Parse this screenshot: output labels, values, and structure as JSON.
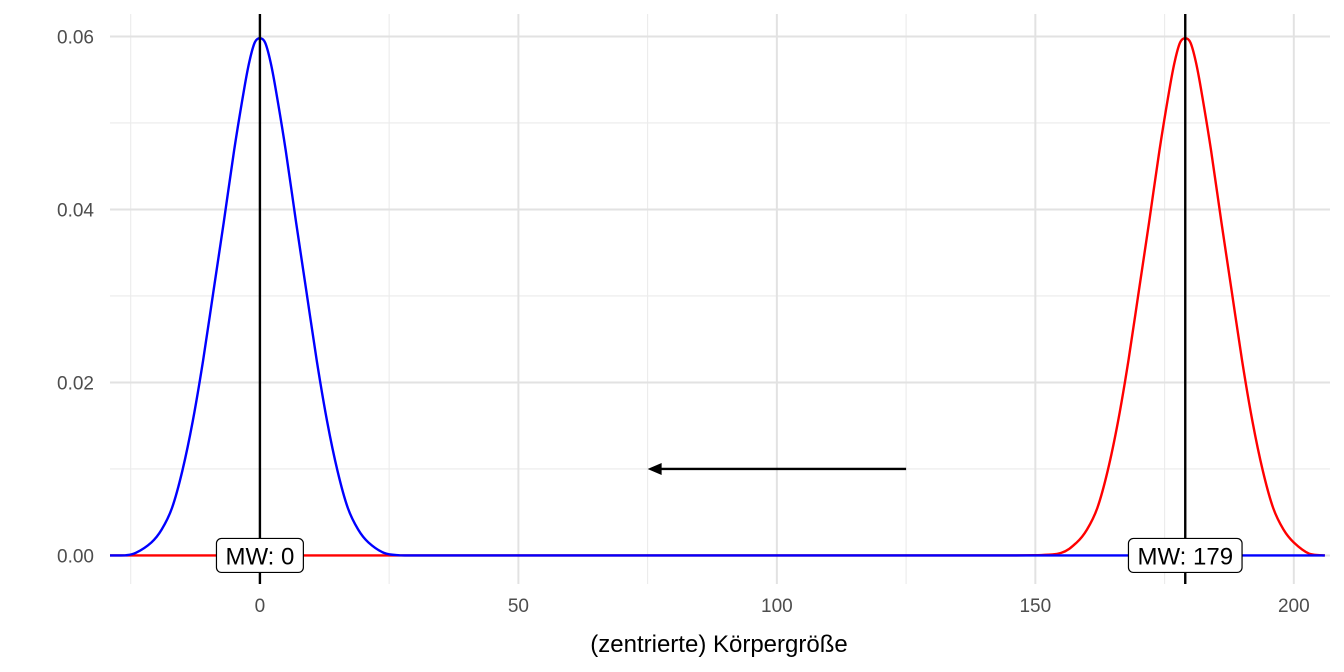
{
  "chart_data": {
    "type": "line",
    "title": "",
    "xlabel": "(zentrierte) Körpergröße",
    "ylabel": "",
    "xlim": [
      -29,
      207
    ],
    "ylim": [
      -0.0033,
      0.0626
    ],
    "x_ticks": [
      0,
      50,
      100,
      150,
      200
    ],
    "x_tick_labels": [
      "0",
      "50",
      "100",
      "150",
      "200"
    ],
    "y_ticks": [
      0,
      0.02,
      0.04,
      0.06
    ],
    "y_tick_labels": [
      "0.00",
      "0.02",
      "0.04",
      "0.06"
    ],
    "x_minor_ticks": [
      -25,
      25,
      75,
      125,
      175
    ],
    "y_minor_ticks": [
      0.01,
      0.03,
      0.05
    ],
    "grid": true,
    "series": [
      {
        "color": "#ff0000",
        "x": [
          -29,
          -20,
          -10,
          0,
          10,
          20,
          30,
          50,
          100,
          140,
          150,
          155,
          158,
          160,
          162,
          164,
          166,
          168,
          170,
          172,
          174,
          176,
          177,
          178,
          179,
          180,
          181,
          182,
          184,
          186,
          188,
          190,
          192,
          194,
          196,
          198,
          200,
          203,
          206
        ],
        "y": [
          0,
          0,
          0,
          0,
          0,
          0,
          0,
          0,
          0,
          0,
          3e-05,
          0.0003,
          0.0015,
          0.003,
          0.0055,
          0.0098,
          0.0155,
          0.0225,
          0.0305,
          0.0385,
          0.0468,
          0.0541,
          0.0572,
          0.0593,
          0.0598,
          0.0593,
          0.0572,
          0.0541,
          0.0468,
          0.0385,
          0.0305,
          0.0225,
          0.0155,
          0.0098,
          0.0055,
          0.003,
          0.0015,
          0.0002,
          0
        ]
      },
      {
        "color": "#0000ff",
        "x": [
          -29,
          -26,
          -24,
          -21,
          -19,
          -17,
          -15,
          -13,
          -11,
          -9,
          -7,
          -5,
          -3,
          -2,
          -1,
          0,
          1,
          2,
          3,
          5,
          7,
          9,
          11,
          13,
          15,
          17,
          19,
          21,
          24,
          27,
          30,
          50,
          100,
          150,
          180,
          206
        ],
        "y": [
          0,
          2e-05,
          0.0003,
          0.0015,
          0.003,
          0.0055,
          0.0098,
          0.0155,
          0.0225,
          0.0305,
          0.0385,
          0.0468,
          0.0541,
          0.0572,
          0.0593,
          0.0598,
          0.0593,
          0.0572,
          0.0541,
          0.0468,
          0.0385,
          0.0305,
          0.0225,
          0.0155,
          0.0098,
          0.0055,
          0.003,
          0.0015,
          0.0003,
          2e-05,
          0,
          0,
          0,
          0,
          0,
          0
        ]
      }
    ],
    "vlines": [
      0,
      179
    ],
    "mean_labels": [
      {
        "x": 0,
        "y": 0,
        "text": "MW: 0"
      },
      {
        "x": 179,
        "y": 0,
        "text": "MW: 179"
      }
    ],
    "arrow": {
      "from": {
        "x": 125,
        "y": 0.01
      },
      "to": {
        "x": 75,
        "y": 0.01
      }
    }
  }
}
